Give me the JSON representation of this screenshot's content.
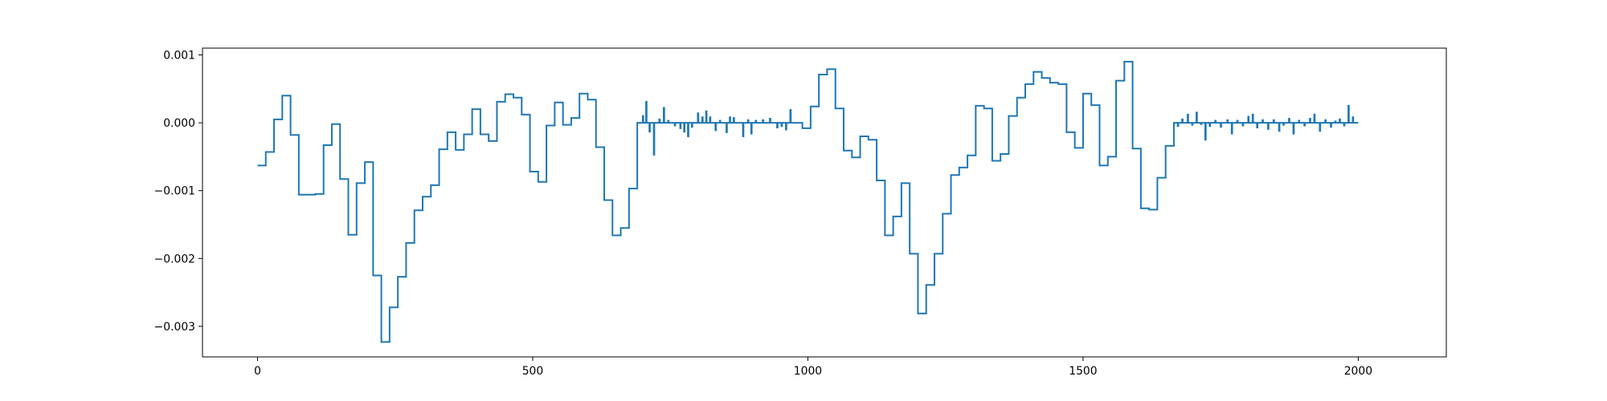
{
  "chart_data": {
    "type": "line",
    "title": "",
    "xlabel": "",
    "ylabel": "",
    "xlim": [
      -100,
      2160
    ],
    "ylim": [
      -0.00345,
      0.0011
    ],
    "x_ticks": [
      {
        "value": 0,
        "label": "0"
      },
      {
        "value": 500,
        "label": "500"
      },
      {
        "value": 1000,
        "label": "1000"
      },
      {
        "value": 1500,
        "label": "1500"
      },
      {
        "value": 2000,
        "label": "2000"
      }
    ],
    "y_ticks": [
      {
        "value": 0.001,
        "label": "0.001"
      },
      {
        "value": 0.0,
        "label": "0.000"
      },
      {
        "value": -0.001,
        "label": "−0.001"
      },
      {
        "value": -0.002,
        "label": "−0.002"
      },
      {
        "value": -0.003,
        "label": "−0.003"
      }
    ],
    "grid": false,
    "series": [
      {
        "color": "#1f77b4",
        "step_segments": [
          [
            0,
            -0.00063
          ],
          [
            15,
            -0.00043
          ],
          [
            30,
            5e-05
          ],
          [
            45,
            0.0004
          ],
          [
            60,
            -0.00018
          ],
          [
            75,
            -0.00106
          ],
          [
            90,
            -0.00106
          ],
          [
            105,
            -0.00105
          ],
          [
            120,
            -0.00033
          ],
          [
            135,
            -2e-05
          ],
          [
            150,
            -0.00083
          ],
          [
            165,
            -0.00165
          ],
          [
            180,
            -0.00089
          ],
          [
            195,
            -0.00058
          ],
          [
            210,
            -0.00225
          ],
          [
            225,
            -0.00323
          ],
          [
            240,
            -0.00272
          ],
          [
            255,
            -0.00227
          ],
          [
            270,
            -0.00177
          ],
          [
            285,
            -0.00129
          ],
          [
            300,
            -0.00109
          ],
          [
            315,
            -0.00092
          ],
          [
            330,
            -0.00039
          ],
          [
            345,
            -0.00014
          ],
          [
            360,
            -0.0004
          ],
          [
            375,
            -0.00017
          ],
          [
            390,
            0.0002
          ],
          [
            405,
            -0.00017
          ],
          [
            420,
            -0.00027
          ],
          [
            435,
            0.00031
          ],
          [
            450,
            0.00042
          ],
          [
            465,
            0.00037
          ],
          [
            480,
            0.00012
          ],
          [
            495,
            -0.00072
          ],
          [
            510,
            -0.00087
          ],
          [
            525,
            -4e-05
          ],
          [
            540,
            0.0003
          ],
          [
            555,
            -3e-05
          ],
          [
            570,
            7e-05
          ],
          [
            585,
            0.00043
          ],
          [
            600,
            0.00034
          ],
          [
            615,
            -0.00036
          ],
          [
            630,
            -0.00114
          ],
          [
            645,
            -0.00166
          ],
          [
            660,
            -0.00155
          ],
          [
            675,
            -0.00097
          ],
          [
            690,
            0.0
          ]
        ],
        "spikes": [
          [
            700,
            0.0001
          ],
          [
            706,
            0.00031
          ],
          [
            712,
            -0.00013
          ],
          [
            720,
            -0.00047
          ],
          [
            730,
            5e-05
          ],
          [
            738,
            0.00022
          ],
          [
            746,
            3e-05
          ],
          [
            758,
            -4e-05
          ],
          [
            768,
            -8e-05
          ],
          [
            775,
            -0.00013
          ],
          [
            782,
            -0.0002
          ],
          [
            789,
            -6e-05
          ],
          [
            800,
            0.00014
          ],
          [
            808,
            8e-05
          ],
          [
            815,
            0.00017
          ],
          [
            822,
            8e-05
          ],
          [
            832,
            -0.00011
          ],
          [
            840,
            3e-05
          ],
          [
            852,
            -0.00014
          ],
          [
            858,
            8e-05
          ],
          [
            865,
            7e-05
          ],
          [
            882,
            -0.0002
          ],
          [
            891,
            4e-05
          ],
          [
            897,
            -0.00016
          ],
          [
            905,
            3e-05
          ],
          [
            918,
            4e-05
          ],
          [
            931,
            6e-05
          ],
          [
            944,
            -7e-05
          ],
          [
            952,
            -5e-05
          ],
          [
            960,
            -0.0001
          ],
          [
            968,
            0.00019
          ]
        ],
        "step_segments_2": [
          [
            990,
            -8e-05
          ],
          [
            1005,
            0.00024
          ],
          [
            1020,
            0.00071
          ],
          [
            1035,
            0.00079
          ],
          [
            1050,
            0.00021
          ],
          [
            1065,
            -0.00041
          ],
          [
            1080,
            -0.00051
          ],
          [
            1095,
            -0.0002
          ],
          [
            1110,
            -0.00025
          ],
          [
            1125,
            -0.00085
          ],
          [
            1140,
            -0.00166
          ],
          [
            1155,
            -0.00138
          ],
          [
            1170,
            -0.00089
          ],
          [
            1185,
            -0.00193
          ],
          [
            1200,
            -0.00281
          ],
          [
            1215,
            -0.00239
          ],
          [
            1230,
            -0.00193
          ],
          [
            1245,
            -0.00134
          ],
          [
            1260,
            -0.00077
          ],
          [
            1275,
            -0.00066
          ],
          [
            1290,
            -0.00048
          ],
          [
            1305,
            0.00025
          ],
          [
            1320,
            0.00021
          ],
          [
            1335,
            -0.00056
          ],
          [
            1350,
            -0.00046
          ],
          [
            1365,
            0.0001
          ],
          [
            1380,
            0.00037
          ],
          [
            1395,
            0.00057
          ],
          [
            1410,
            0.00075
          ],
          [
            1425,
            0.00066
          ],
          [
            1440,
            0.00059
          ],
          [
            1455,
            0.00057
          ],
          [
            1470,
            -0.00014
          ],
          [
            1485,
            -0.00037
          ],
          [
            1500,
            0.00043
          ],
          [
            1515,
            0.00026
          ],
          [
            1530,
            -0.00063
          ],
          [
            1545,
            -0.0005
          ],
          [
            1560,
            0.00062
          ],
          [
            1575,
            0.0009
          ],
          [
            1590,
            -0.00038
          ],
          [
            1605,
            -0.00126
          ],
          [
            1620,
            -0.00128
          ],
          [
            1635,
            -0.00081
          ],
          [
            1650,
            -0.00034
          ],
          [
            1665,
            0.0
          ]
        ],
        "spikes_2": [
          [
            1672,
            -5e-05
          ],
          [
            1680,
            5e-05
          ],
          [
            1690,
            0.00012
          ],
          [
            1698,
            -3e-05
          ],
          [
            1706,
            0.00015
          ],
          [
            1714,
            -2e-05
          ],
          [
            1722,
            -0.00025
          ],
          [
            1730,
            -5e-05
          ],
          [
            1740,
            3e-05
          ],
          [
            1750,
            -6e-05
          ],
          [
            1762,
            4e-05
          ],
          [
            1770,
            -0.00016
          ],
          [
            1780,
            3e-05
          ],
          [
            1790,
            -4e-05
          ],
          [
            1800,
            9e-05
          ],
          [
            1808,
            0.00012
          ],
          [
            1816,
            -7e-05
          ],
          [
            1826,
            4e-05
          ],
          [
            1836,
            -9e-05
          ],
          [
            1846,
            4e-05
          ],
          [
            1856,
            -0.00012
          ],
          [
            1864,
            -3e-05
          ],
          [
            1874,
            6e-05
          ],
          [
            1882,
            -0.00016
          ],
          [
            1892,
            3e-05
          ],
          [
            1902,
            -4e-05
          ],
          [
            1912,
            6e-05
          ],
          [
            1920,
            0.00012
          ],
          [
            1930,
            -0.00012
          ],
          [
            1940,
            4e-05
          ],
          [
            1950,
            -6e-05
          ],
          [
            1958,
            2e-05
          ],
          [
            1966,
            5e-05
          ],
          [
            1974,
            -4e-05
          ],
          [
            1982,
            0.00025
          ],
          [
            1990,
            8e-05
          ]
        ],
        "x_end": 2000
      }
    ]
  }
}
